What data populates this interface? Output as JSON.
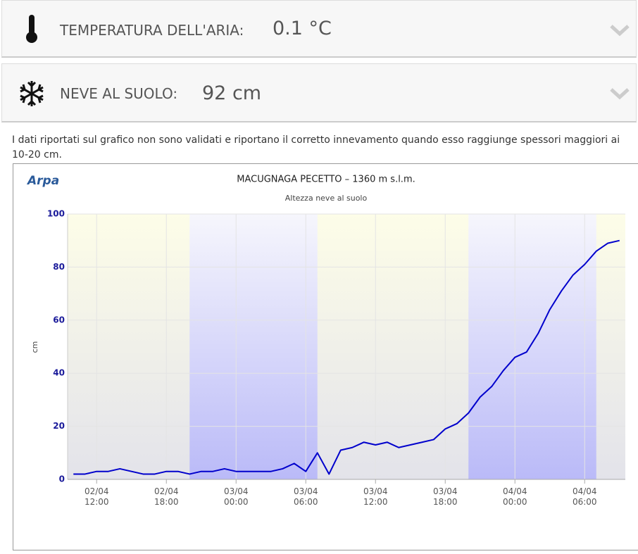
{
  "panels": [
    {
      "label": "TEMPERATURA DELL'ARIA:",
      "value": "0.1 °C"
    },
    {
      "label": "NEVE AL SUOLO:",
      "value": "92 cm"
    }
  ],
  "note": "I dati riportati sul grafico non sono validati e riportano il corretto innevamento quando esso raggiunge spessori maggiori ai 10-20 cm.",
  "chart_data": {
    "type": "line",
    "logo": "Arpa",
    "title": "MACUGNAGA PECETTO – 1360 m s.l.m.",
    "subtitle": "Altezza neve al suolo",
    "y_label": "cm",
    "color": "#0000cc",
    "x": [
      "02/04 10:00",
      "02/04 11:00",
      "02/04 12:00",
      "02/04 13:00",
      "02/04 14:00",
      "02/04 15:00",
      "02/04 16:00",
      "02/04 17:00",
      "02/04 18:00",
      "02/04 19:00",
      "02/04 20:00",
      "02/04 21:00",
      "02/04 22:00",
      "02/04 23:00",
      "03/04 00:00",
      "03/04 01:00",
      "03/04 02:00",
      "03/04 03:00",
      "03/04 04:00",
      "03/04 05:00",
      "03/04 06:00",
      "03/04 07:00",
      "03/04 08:00",
      "03/04 09:00",
      "03/04 10:00",
      "03/04 11:00",
      "03/04 12:00",
      "03/04 13:00",
      "03/04 14:00",
      "03/04 15:00",
      "03/04 16:00",
      "03/04 17:00",
      "03/04 18:00",
      "03/04 19:00",
      "03/04 20:00",
      "03/04 21:00",
      "03/04 22:00",
      "03/04 23:00",
      "04/04 00:00",
      "04/04 01:00",
      "04/04 02:00",
      "04/04 03:00",
      "04/04 04:00",
      "04/04 05:00",
      "04/04 06:00",
      "04/04 07:00",
      "04/04 08:00",
      "04/04 09:00"
    ],
    "values": [
      2,
      2,
      3,
      3,
      4,
      3,
      2,
      2,
      3,
      3,
      2,
      3,
      3,
      4,
      3,
      3,
      3,
      3,
      4,
      6,
      3,
      10,
      2,
      11,
      12,
      14,
      13,
      14,
      12,
      13,
      14,
      15,
      19,
      21,
      25,
      31,
      35,
      41,
      46,
      48,
      55,
      64,
      71,
      77,
      81,
      86,
      89,
      90
    ],
    "xlim": [
      "02/04 09:30",
      "04/04 09:30"
    ],
    "xticks": [
      "02/04 12:00",
      "02/04 18:00",
      "03/04 00:00",
      "03/04 06:00",
      "03/04 12:00",
      "03/04 18:00",
      "04/04 00:00",
      "04/04 06:00"
    ],
    "ylim": [
      0,
      100
    ],
    "yticks": [
      0,
      20,
      40,
      60,
      80,
      100
    ],
    "grid": true,
    "night_bands": [
      [
        "02/04 20:00",
        "03/04 07:00"
      ],
      [
        "03/04 20:00",
        "04/04 07:00"
      ]
    ]
  }
}
